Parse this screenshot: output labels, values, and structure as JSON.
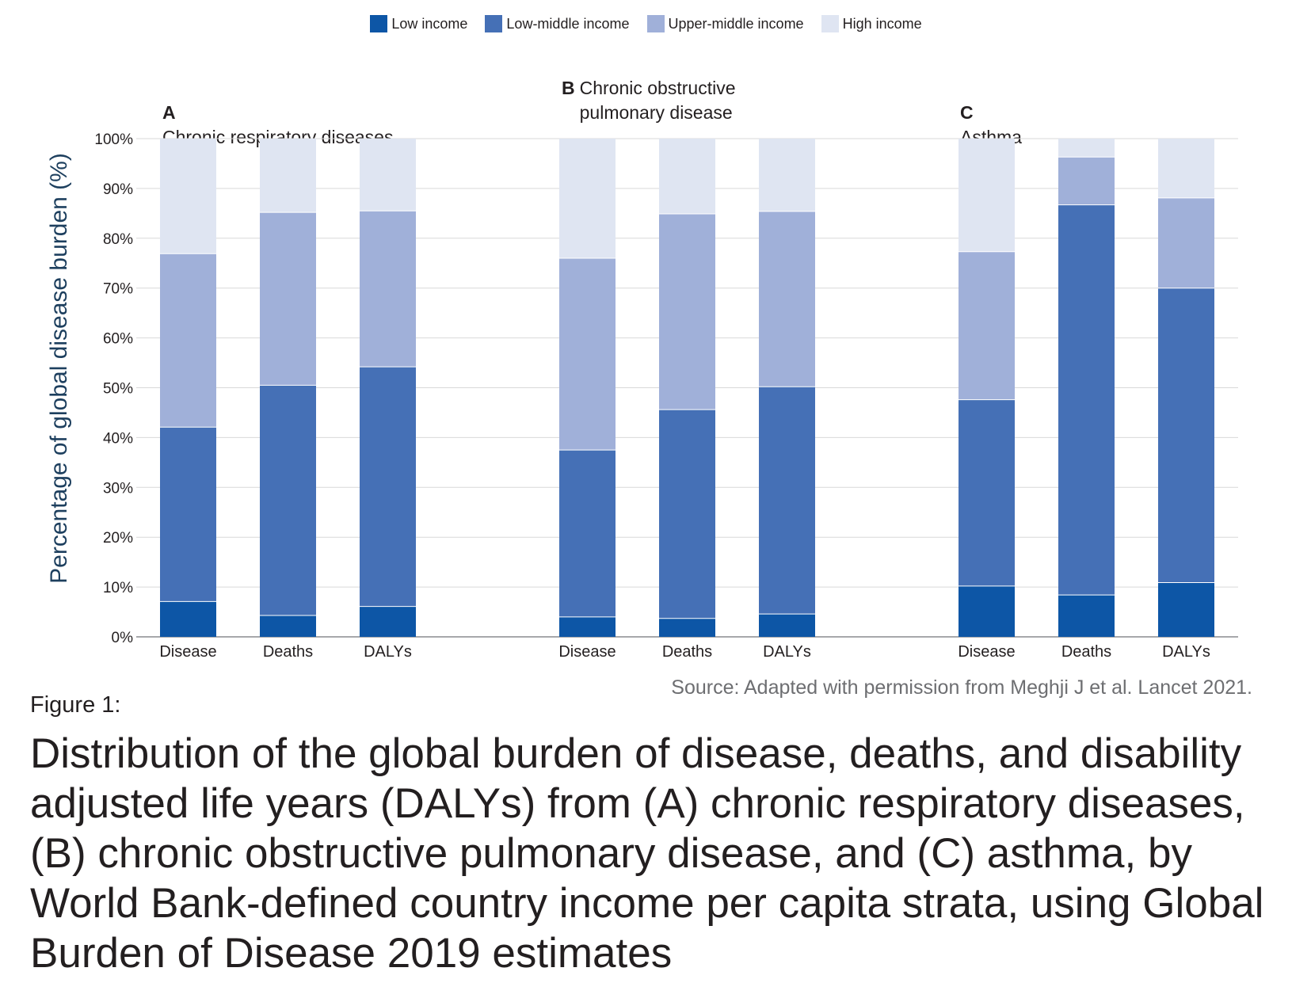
{
  "legend": [
    {
      "label": "Low income",
      "color": "#0d56a6"
    },
    {
      "label": "Low-middle income",
      "color": "#4570b6"
    },
    {
      "label": "Upper-middle income",
      "color": "#a0b0d9"
    },
    {
      "label": "High income",
      "color": "#dfe5f2"
    }
  ],
  "chart_data": {
    "type": "bar",
    "stacked": true,
    "ylabel": "Percentage of global disease burden (%)",
    "ylim": [
      0,
      100
    ],
    "yticks": [
      "0%",
      "10%",
      "20%",
      "30%",
      "40%",
      "50%",
      "60%",
      "70%",
      "80%",
      "90%",
      "100%"
    ],
    "grid": true,
    "legend_position": "top-center",
    "panels": [
      {
        "letter": "A",
        "title": "Chronic respiratory diseases",
        "categories": [
          "Disease",
          "Deaths",
          "DALYs"
        ],
        "series": [
          {
            "name": "Low income",
            "values": [
              7.1,
              4.3,
              6.1
            ]
          },
          {
            "name": "Low-middle income",
            "values": [
              35.0,
              46.2,
              48.1
            ]
          },
          {
            "name": "Upper-middle income",
            "values": [
              34.8,
              34.7,
              31.3
            ]
          },
          {
            "name": "High income",
            "values": [
              23.1,
              14.8,
              14.5
            ]
          }
        ]
      },
      {
        "letter": "B",
        "title": "Chronic obstructive\npulmonary disease",
        "categories": [
          "Disease",
          "Deaths",
          "DALYs"
        ],
        "series": [
          {
            "name": "Low income",
            "values": [
              4.0,
              3.7,
              4.6
            ]
          },
          {
            "name": "Low-middle income",
            "values": [
              33.5,
              41.9,
              45.6
            ]
          },
          {
            "name": "Upper-middle income",
            "values": [
              38.5,
              39.3,
              35.2
            ]
          },
          {
            "name": "High income",
            "values": [
              24.0,
              15.1,
              14.6
            ]
          }
        ]
      },
      {
        "letter": "C",
        "title": "Asthma",
        "categories": [
          "Disease",
          "Deaths",
          "DALYs"
        ],
        "series": [
          {
            "name": "Low income",
            "values": [
              10.2,
              8.4,
              10.9
            ]
          },
          {
            "name": "Low-middle income",
            "values": [
              37.4,
              78.3,
              59.1
            ]
          },
          {
            "name": "Upper-middle income",
            "values": [
              29.7,
              9.6,
              18.1
            ]
          },
          {
            "name": "High income",
            "values": [
              22.7,
              3.7,
              11.9
            ]
          }
        ]
      }
    ]
  },
  "source": "Source: Adapted with permission from Meghji J et al. Lancet 2021.",
  "figure_label": "Figure 1:",
  "caption": "Distribution of the global burden of disease, deaths, and disability adjusted life years (DALYs) from (A) chronic respiratory diseases, (B) chronic obstructive pulmonary disease, and (C) asthma, by World Bank-defined country income per capita strata, using Global Burden of Disease 2019 estimates"
}
